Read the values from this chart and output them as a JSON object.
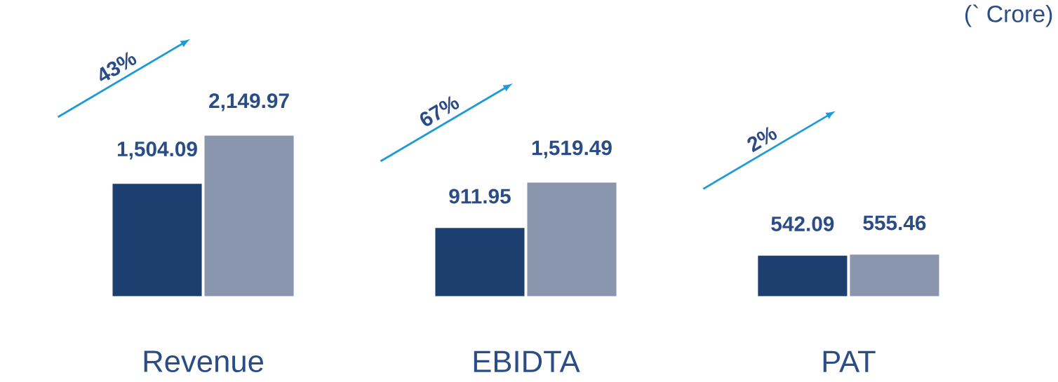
{
  "chart_data": {
    "type": "bar",
    "categories": [
      "Revenue",
      "EBIDTA",
      "PAT"
    ],
    "series": [
      {
        "color": "#1d3f70",
        "values": [
          1504.09,
          911.95,
          542.09
        ],
        "value_labels": [
          "1,504.09",
          "911.95",
          "542.09"
        ]
      },
      {
        "color": "#8a96ae",
        "values": [
          2149.97,
          1519.49,
          555.46
        ],
        "value_labels": [
          "2,149.97",
          "1,519.49",
          "555.46"
        ]
      }
    ],
    "annotations": [
      "43%",
      "67%",
      "2%",
      "(` Crore)"
    ]
  }
}
